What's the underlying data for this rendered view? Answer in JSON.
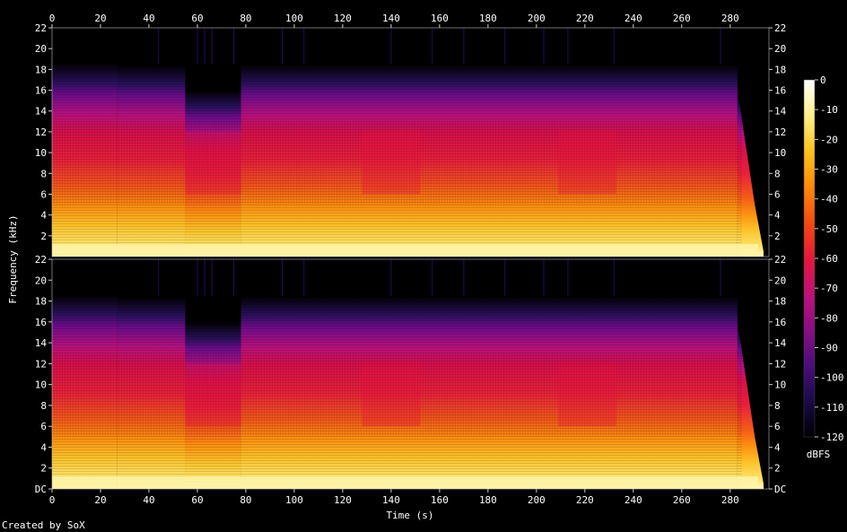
{
  "chart_data": {
    "type": "heatmap",
    "kind": "spectrogram",
    "xlabel": "Time (s)",
    "ylabel": "Frequency (kHz)",
    "colorbar_unit": "dBFS",
    "x_ticks": [
      "0",
      "20",
      "40",
      "60",
      "80",
      "100",
      "120",
      "140",
      "160",
      "180",
      "200",
      "220",
      "240",
      "260",
      "280"
    ],
    "x_range": [
      0,
      296
    ],
    "y_range_khz": [
      0,
      22
    ],
    "channels": [
      {
        "y_ticks": [
          "2",
          "4",
          "6",
          "8",
          "10",
          "12",
          "14",
          "16",
          "18",
          "20",
          "22"
        ]
      },
      {
        "y_ticks": [
          "DC",
          "2",
          "4",
          "6",
          "8",
          "10",
          "12",
          "14",
          "16",
          "18",
          "20",
          "22"
        ]
      }
    ],
    "colorbar_ticks": [
      "0",
      "-10",
      "-20",
      "-30",
      "-40",
      "-50",
      "-60",
      "-70",
      "-80",
      "-90",
      "-100",
      "-110",
      "-120"
    ],
    "colorbar_range": [
      -120,
      0
    ],
    "upper_cutoff_khz_by_segment": [
      {
        "t_start": 0,
        "t_end": 27,
        "cutoff_khz": 18.6
      },
      {
        "t_start": 27,
        "t_end": 55,
        "cutoff_khz": 18.4
      },
      {
        "t_start": 55,
        "t_end": 78,
        "cutoff_khz": 16.0
      },
      {
        "t_start": 78,
        "t_end": 283,
        "cutoff_khz": 18.5
      },
      {
        "t_start": 283,
        "t_end": 296,
        "cutoff_khz": 16.0
      }
    ],
    "gradient_colors": [
      "#000000",
      "#1a0a4a",
      "#4b0d7a",
      "#8a0e84",
      "#c0107a",
      "#e8183a",
      "#f54a10",
      "#fb8a08",
      "#fdc21a",
      "#fef08a",
      "#ffffff"
    ]
  },
  "footer": {
    "credit": "Created by SoX"
  }
}
